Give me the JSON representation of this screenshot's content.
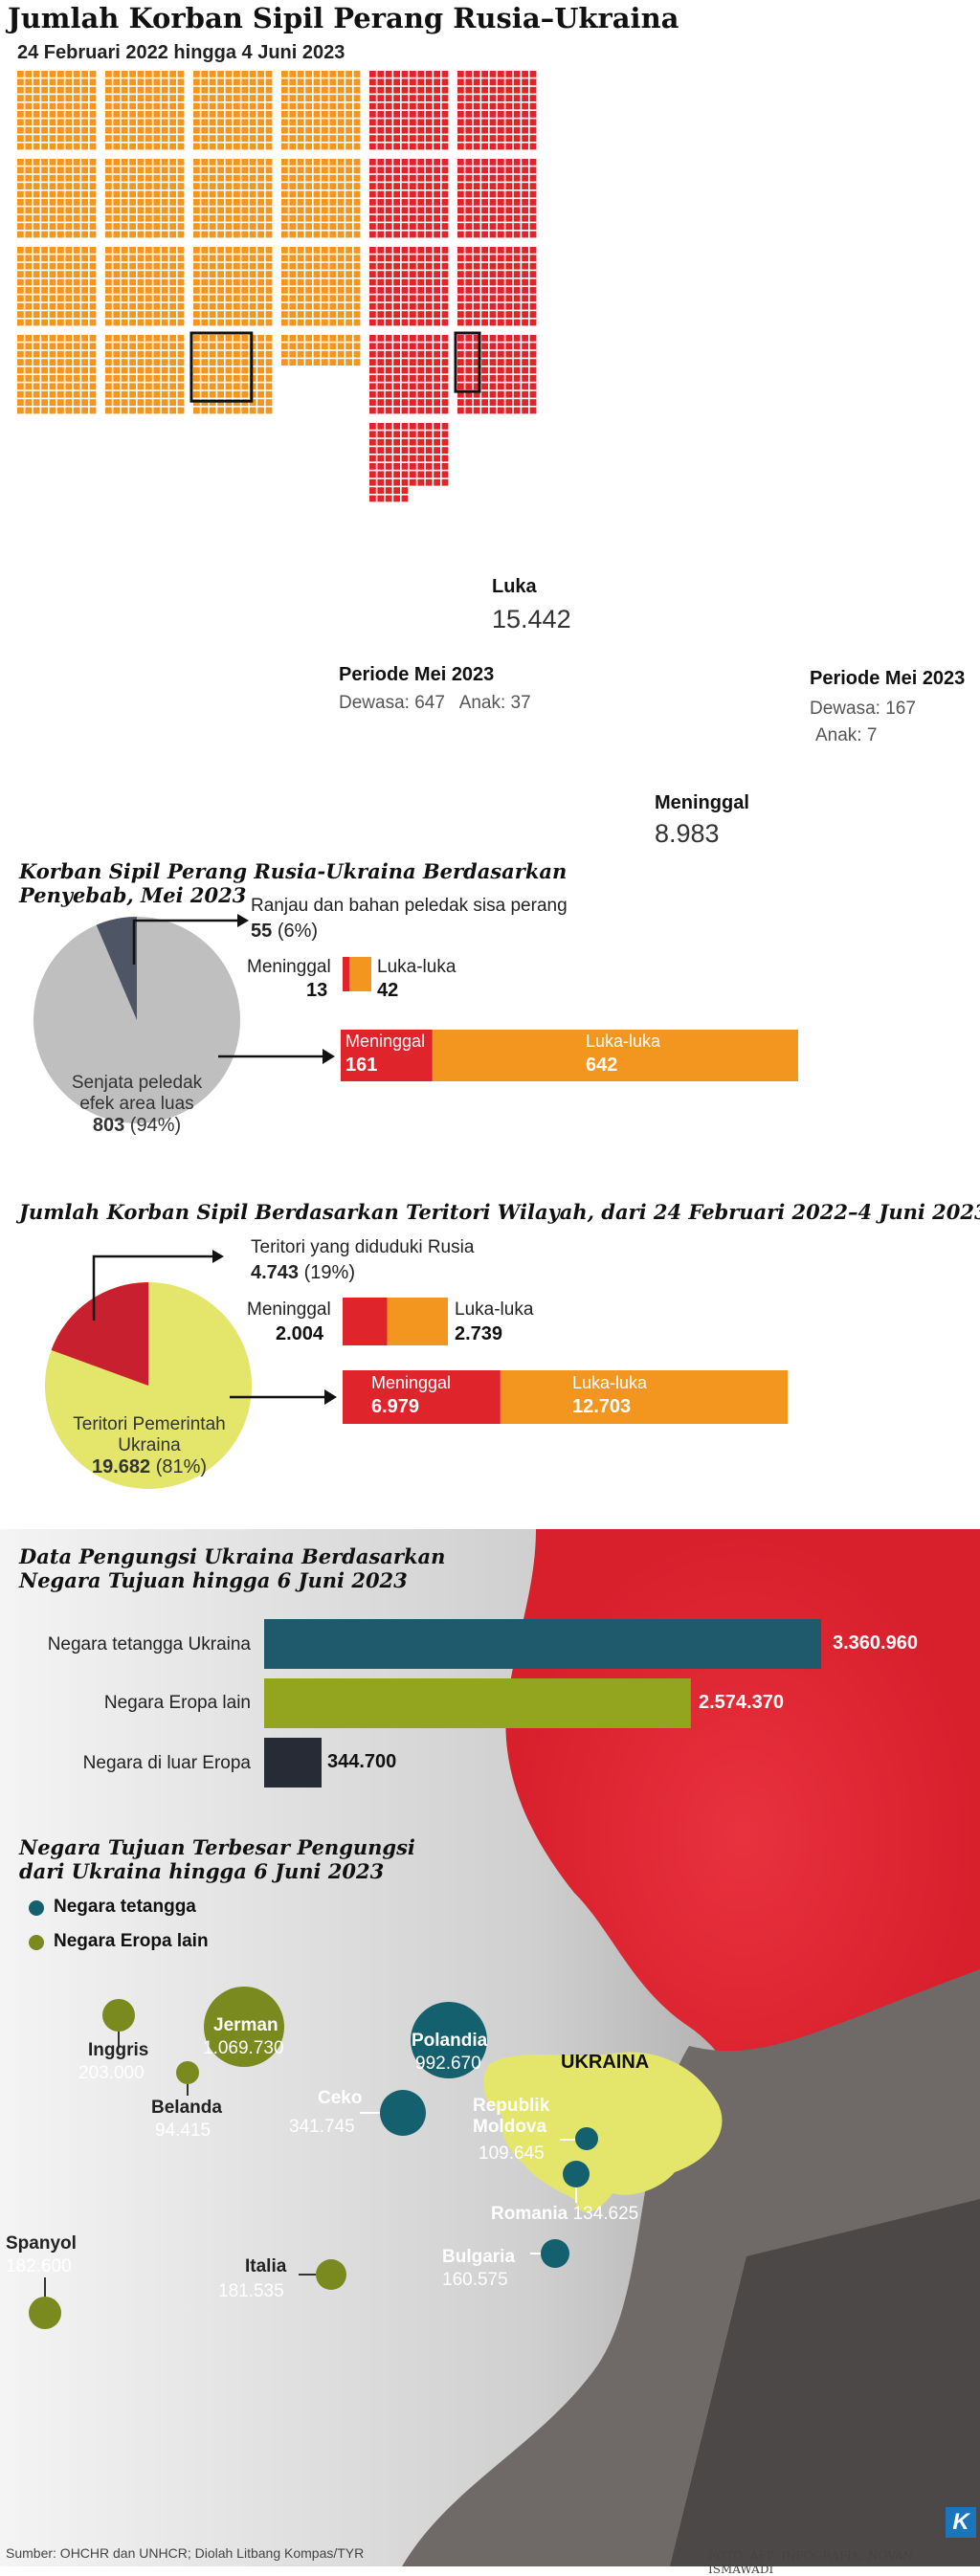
{
  "chart_data": [
    {
      "type": "waffle",
      "title": "Jumlah Korban Sipil Perang Rusia–Ukraina",
      "subtitle": "24 Februari 2022 hingga 4 Juni 2023",
      "categories": [
        {
          "name": "Luka",
          "value": "15.442",
          "color": "#F3961F"
        },
        {
          "name": "Meninggal",
          "value": "8.983",
          "color": "#E0242C"
        }
      ],
      "highlights": [
        {
          "label": "Periode Mei 2023",
          "detail": "Dewasa: 647   Anak: 37",
          "dewasa": 647,
          "anak": 37
        },
        {
          "label": "Periode Mei 2023",
          "detail_1": "Dewasa: 167",
          "detail_2": "Anak: 7",
          "dewasa": 167,
          "anak": 7
        }
      ]
    },
    {
      "type": "pie",
      "title": "Korban Sipil Perang Rusia-Ukraina Berdasarkan Penyebab, Mei 2023",
      "slices": [
        {
          "label": "Ranjau dan bahan peledak sisa perang",
          "value": 55,
          "value_text": "55",
          "pct": "(6%)",
          "color": "#4E5666"
        },
        {
          "label_1": "Senjata peledak",
          "label_2": "efek area luas",
          "value": 803,
          "value_text": "803",
          "pct": "(94%)",
          "color": "#BFBFBF"
        }
      ],
      "breakdowns": [
        {
          "meninggal": 13,
          "meninggal_text": "13",
          "luka": 42,
          "luka_text": "42"
        },
        {
          "meninggal": 161,
          "meninggal_text": "161",
          "luka": 642,
          "luka_text": "642"
        }
      ],
      "labels": {
        "meninggal": "Meninggal",
        "luka": "Luka-luka"
      }
    },
    {
      "type": "pie",
      "title": "Jumlah Korban Sipil Berdasarkan Teritori Wilayah, dari 24 Februari 2022–4 Juni 2023",
      "slices": [
        {
          "label": "Teritori yang diduduki Rusia",
          "value": 4743,
          "value_text": "4.743",
          "pct": "(19%)",
          "color": "#C8202F"
        },
        {
          "label_1": "Teritori Pemerintah",
          "label_2": "Ukraina",
          "value": 19682,
          "value_text": "19.682",
          "pct": "(81%)",
          "color": "#E3E66A"
        }
      ],
      "breakdowns": [
        {
          "meninggal": 2004,
          "meninggal_text": "2.004",
          "luka": 2739,
          "luka_text": "2.739"
        },
        {
          "meninggal": 6979,
          "meninggal_text": "6.979",
          "luka": 12703,
          "luka_text": "12.703"
        }
      ],
      "labels": {
        "meninggal": "Meninggal",
        "luka": "Luka-luka"
      }
    },
    {
      "type": "bar",
      "orientation": "horizontal",
      "title": "Data Pengungsi Ukraina Berdasarkan Negara Tujuan hingga 6 Juni 2023",
      "categories": [
        "Negara tetangga Ukraina",
        "Negara Eropa lain",
        "Negara di luar Eropa"
      ],
      "values": [
        3360960,
        2574370,
        344700
      ],
      "value_labels": [
        "3.360.960",
        "2.574.370",
        "344.700"
      ],
      "colors": [
        "#1E5A6B",
        "#93A51F",
        "#272B36"
      ]
    },
    {
      "type": "bubble-map",
      "title": "Negara Tujuan Terbesar Pengungsi dari Ukraina hingga 6 Juni 2023",
      "legend": [
        {
          "label": "Negara tetangga",
          "color": "#15606E"
        },
        {
          "label": "Negara Eropa lain",
          "color": "#7A8A1E"
        }
      ],
      "region_label": "UKRAINA",
      "points": [
        {
          "name": "Polandia",
          "value": 992670,
          "value_text": "992.670",
          "group": "Negara tetangga"
        },
        {
          "name": "Ceko",
          "value": 341745,
          "value_text": "341.745",
          "group": "Negara tetangga"
        },
        {
          "name_1": "Republik",
          "name_2": "Moldova",
          "value": 109645,
          "value_text": "109.645",
          "group": "Negara tetangga"
        },
        {
          "name": "Romania",
          "value": 134625,
          "value_text": "134.625",
          "group": "Negara tetangga"
        },
        {
          "name": "Bulgaria",
          "value": 160575,
          "value_text": "160.575",
          "group": "Negara tetangga"
        },
        {
          "name": "Jerman",
          "value": 1069730,
          "value_text": "1.069.730",
          "group": "Negara Eropa lain"
        },
        {
          "name": "Inggris",
          "value": 203000,
          "value_text": "203.000",
          "group": "Negara Eropa lain"
        },
        {
          "name": "Belanda",
          "value": 94415,
          "value_text": "94.415",
          "group": "Negara Eropa lain"
        },
        {
          "name": "Spanyol",
          "value": 182600,
          "value_text": "182.600",
          "group": "Negara Eropa lain"
        },
        {
          "name": "Italia",
          "value": 181535,
          "value_text": "181.535",
          "group": "Negara Eropa lain"
        }
      ]
    }
  ],
  "footer": {
    "source": "Sumber: OHCHR dan UNHCR; Diolah Litbang Kompas/TYR",
    "credit": "FOTO: AFP; INFOGRAFIK: NOVAN, ISMAWADI",
    "logo": "K"
  }
}
